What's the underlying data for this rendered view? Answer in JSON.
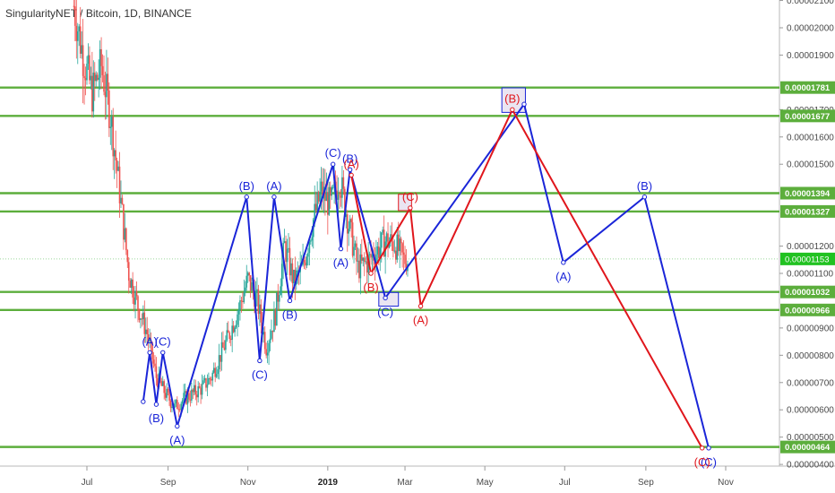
{
  "header": {
    "title": "SingularityNET / Bitcoin, 1D, BINANCE"
  },
  "colors": {
    "up_candle": "#26a69a",
    "down_candle": "#ef5350",
    "level_line": "#5cae3c",
    "blue_wave": "#1a25d8",
    "red_wave": "#e0161c",
    "current_price": "#21c221",
    "axis_text": "#4a4a4a",
    "box_fill": "#e6e1f0"
  },
  "chart_data": {
    "type": "line",
    "title": "SingularityNET / Bitcoin, 1D, BINANCE",
    "xlabel": "",
    "ylabel": "",
    "grid": false,
    "x_ticks": [
      "Jul",
      "Sep",
      "Nov",
      "2019",
      "Mar",
      "May",
      "Jul",
      "Sep",
      "Nov"
    ],
    "y_ticks": [
      "0.00002100",
      "0.00002000",
      "0.00001900",
      "0.00001700",
      "0.00001600",
      "0.00001500",
      "0.00001200",
      "0.00001100",
      "0.00000900",
      "0.00000800",
      "0.00000700",
      "0.00000600",
      "0.00000500",
      "0.00000400"
    ],
    "y_range": [
      3.6e-06,
      2.13e-05
    ],
    "current_price": {
      "label": "0.00001153",
      "value": 1.153e-05
    },
    "horizontal_levels": [
      {
        "label": "0.00001781",
        "value": 1.781e-05
      },
      {
        "label": "0.00001677",
        "value": 1.677e-05
      },
      {
        "label": "0.00001394",
        "value": 1.394e-05
      },
      {
        "label": "0.00001327",
        "value": 1.327e-05
      },
      {
        "label": "0.00001032",
        "value": 1.032e-05
      },
      {
        "label": "0.00000966",
        "value": 9.66e-06
      },
      {
        "label": "0.00000464",
        "value": 4.64e-06
      }
    ],
    "price_series": {
      "name": "",
      "x": [
        "2018-06-21",
        "2018-06-28",
        "2018-07-05",
        "2018-07-12",
        "2018-07-19",
        "2018-07-26",
        "2018-08-02",
        "2018-08-09",
        "2018-08-16",
        "2018-08-23",
        "2018-08-30",
        "2018-09-06",
        "2018-09-13",
        "2018-09-20",
        "2018-09-27",
        "2018-10-04",
        "2018-10-11",
        "2018-10-18",
        "2018-10-25",
        "2018-11-01",
        "2018-11-08",
        "2018-11-15",
        "2018-11-22",
        "2018-11-29",
        "2018-12-06",
        "2018-12-13",
        "2018-12-20",
        "2018-12-27",
        "2019-01-03",
        "2019-01-10",
        "2019-01-17",
        "2019-01-24",
        "2019-01-31",
        "2019-02-07",
        "2019-02-14",
        "2019-02-21",
        "2019-02-28"
      ],
      "close": [
        2.08e-05,
        1.9e-05,
        1.76e-05,
        1.86e-05,
        1.68e-05,
        1.4e-05,
        1.1e-05,
        9.8e-06,
        8.8e-06,
        7.2e-06,
        6.6e-06,
        6.1e-06,
        6.4e-06,
        6.6e-06,
        6.8e-06,
        7.2e-06,
        8e-06,
        8.8e-06,
        9.7e-06,
        1.08e-05,
        1e-05,
        8.3e-06,
        9.5e-06,
        1.2e-05,
        1.07e-05,
        1.12e-05,
        1.28e-05,
        1.4e-05,
        1.35e-05,
        1.45e-05,
        1.28e-05,
        1.12e-05,
        1.14e-05,
        1.18e-05,
        1.22e-05,
        1.21e-05,
        1.15e-05
      ]
    },
    "series": [
      {
        "name": "",
        "color": "#1a25d8",
        "points": [
          {
            "x": "2018-08-13",
            "y": 6.3e-06
          },
          {
            "x": "2018-08-18",
            "y": 8.1e-06,
            "label": "(A)"
          },
          {
            "x": "2018-08-23",
            "y": 6.2e-06,
            "label": "(B)"
          },
          {
            "x": "2018-08-28",
            "y": 8.1e-06,
            "label": "(C)"
          },
          {
            "x": "2018-09-08",
            "y": 5.4e-06,
            "label": "(A)"
          },
          {
            "x": "2018-10-31",
            "y": 1.38e-05,
            "label": "(B)"
          },
          {
            "x": "2018-11-10",
            "y": 7.8e-06,
            "label": "(C)"
          },
          {
            "x": "2018-11-21",
            "y": 1.38e-05,
            "label": "(A)"
          },
          {
            "x": "2018-12-03",
            "y": 1e-05,
            "label": "(B)"
          },
          {
            "x": "2019-01-05",
            "y": 1.5e-05,
            "label": "(C)"
          },
          {
            "x": "2019-01-11",
            "y": 1.19e-05,
            "label": "(A)"
          },
          {
            "x": "2019-01-18",
            "y": 1.48e-05,
            "label": "(B)"
          },
          {
            "x": "2019-02-14",
            "y": 1.01e-05,
            "label": "(C)"
          },
          {
            "x": "2019-05-31",
            "y": 1.72e-05
          },
          {
            "x": "2019-06-30",
            "y": 1.14e-05,
            "label": "(A)"
          },
          {
            "x": "2019-08-31",
            "y": 1.38e-05,
            "label": "(B)"
          },
          {
            "x": "2019-10-19",
            "y": 4.6e-06,
            "label": "(C)"
          }
        ]
      },
      {
        "name": "",
        "color": "#e0161c",
        "points": [
          {
            "x": "2019-01-19",
            "y": 1.46e-05,
            "label": "(A)"
          },
          {
            "x": "2019-02-03",
            "y": 1.1e-05,
            "label": "(B)"
          },
          {
            "x": "2019-03-05",
            "y": 1.34e-05,
            "label": "(C)"
          },
          {
            "x": "2019-03-13",
            "y": 9.8e-06,
            "label": "(A)"
          },
          {
            "x": "2019-05-22",
            "y": 1.7e-05,
            "label": "(B)"
          },
          {
            "x": "2019-10-14",
            "y": 4.6e-06,
            "label": "(C)"
          }
        ]
      }
    ],
    "target_boxes": [
      {
        "color": "#1a25d8",
        "x": [
          "2019-05-14",
          "2019-06-01"
        ],
        "y": [
          1.69e-05,
          1.78e-05
        ]
      },
      {
        "color": "#1a25d8",
        "x": [
          "2019-02-09",
          "2019-02-24"
        ],
        "y": [
          9.8e-06,
          1.03e-05
        ]
      },
      {
        "color": "#e0161c",
        "x": [
          "2019-02-24",
          "2019-03-06"
        ],
        "y": [
          1.33e-05,
          1.39e-05
        ]
      }
    ]
  }
}
